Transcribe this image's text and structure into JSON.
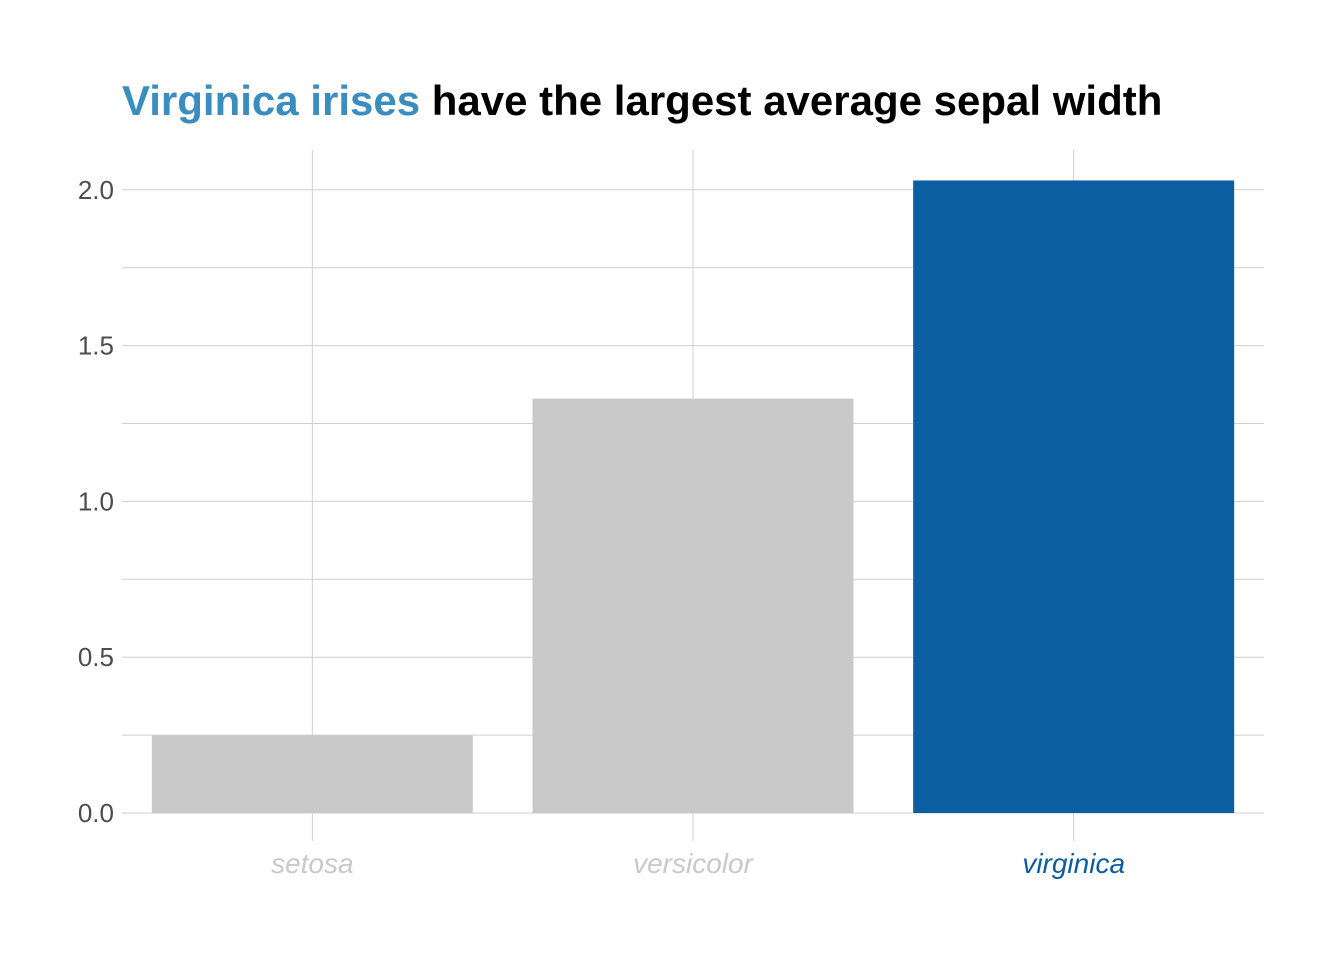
{
  "title": {
    "highlight": "Virginica irises",
    "rest": " have the largest average sepal width",
    "highlight_color": "#3a8ebf",
    "rest_color": "#000000"
  },
  "colors": {
    "highlight_bar": "#0b5ea1",
    "muted_bar": "#c9c9c9",
    "highlight_label": "#0b5ea1",
    "muted_label": "#c9c9c9",
    "grid": "#cfcfcf",
    "tick_text": "#4d4d4d"
  },
  "chart_data": {
    "type": "bar",
    "title": "Virginica irises have the largest average sepal width",
    "xlabel": "",
    "ylabel": "",
    "categories": [
      "setosa",
      "versicolor",
      "virginica"
    ],
    "values": [
      0.25,
      1.33,
      2.03
    ],
    "highlighted": [
      false,
      false,
      true
    ],
    "ylim": [
      0,
      2.1
    ],
    "yticks": [
      0.0,
      0.5,
      1.0,
      1.5,
      2.0
    ],
    "ytick_labels": [
      "0.0",
      "0.5",
      "1.0",
      "1.5",
      "2.0"
    ],
    "grid": true,
    "legend": "none"
  }
}
